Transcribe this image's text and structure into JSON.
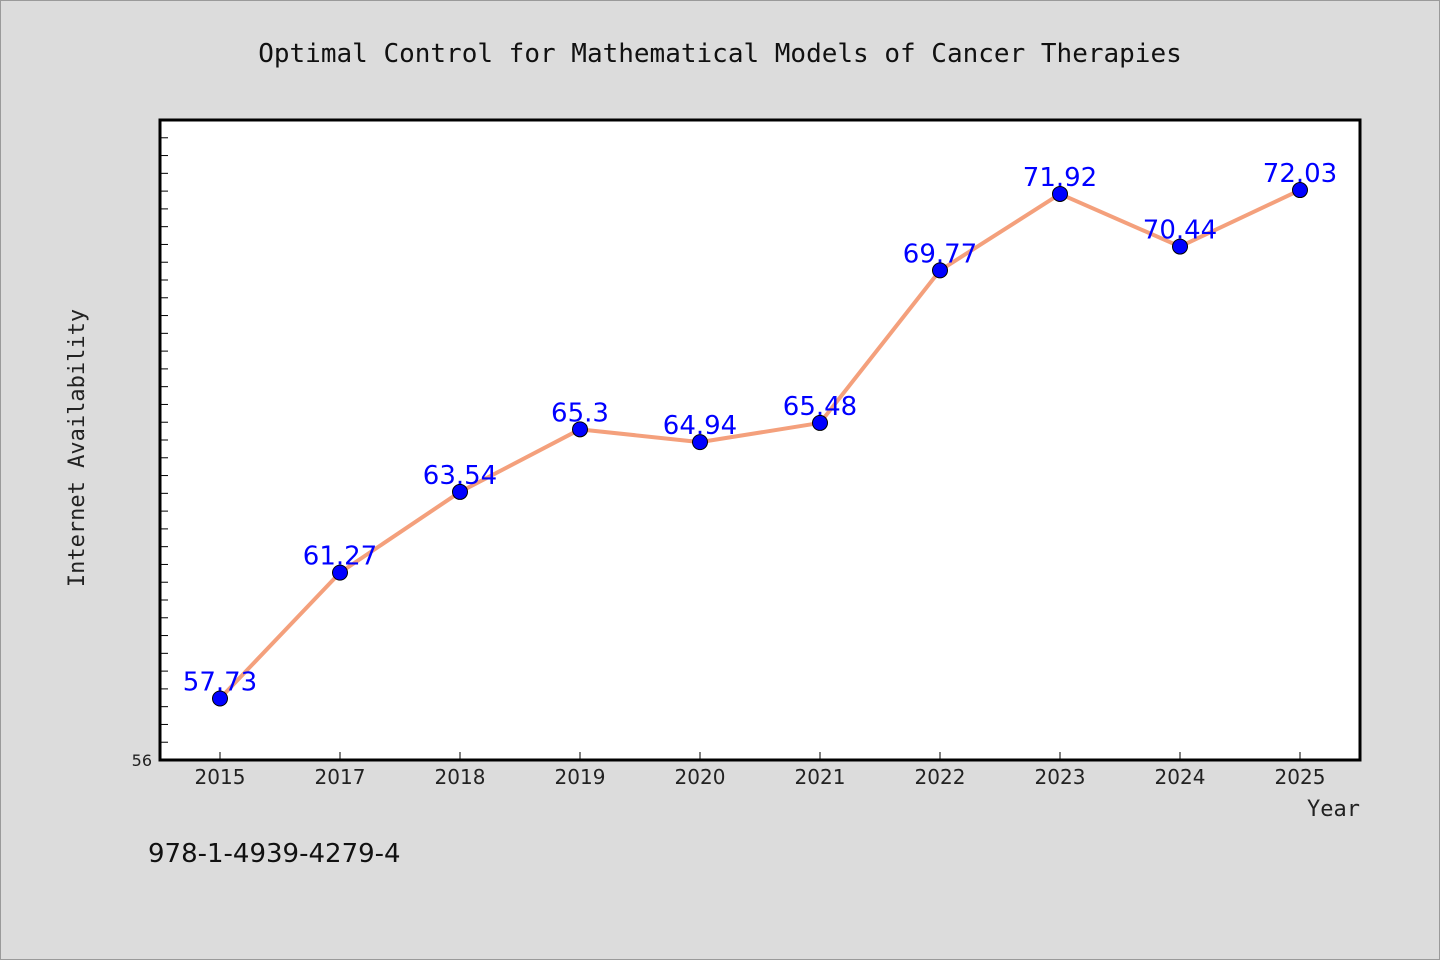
{
  "isbn": "978-1-4939-4279-4",
  "chart_data": {
    "type": "line",
    "title": "Optimal Control for Mathematical Models of Cancer Therapies",
    "xlabel": "Year",
    "ylabel": "Internet Availability",
    "categories": [
      "2015",
      "2017",
      "2018",
      "2019",
      "2020",
      "2021",
      "2022",
      "2023",
      "2024",
      "2025"
    ],
    "series": [
      {
        "values": [
          57.73,
          61.27,
          63.54,
          65.3,
          64.94,
          65.48,
          69.77,
          71.92,
          70.44,
          72.03
        ]
      }
    ],
    "ylim": [
      56,
      74
    ],
    "y_tick_labels": [
      "56"
    ],
    "grid": false,
    "line_color": "#f4a07c",
    "marker_color": "#0000ff",
    "label_color": "#0000ff"
  }
}
